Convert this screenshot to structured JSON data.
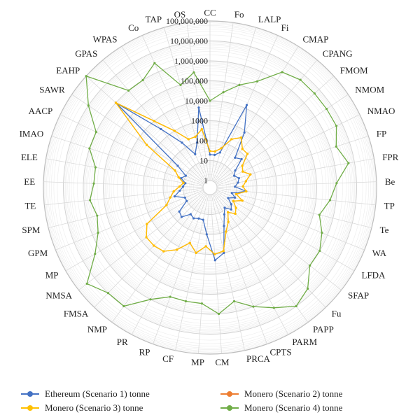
{
  "chart_data": {
    "type": "radar",
    "scale": "log",
    "grid": true,
    "legend_position": "bottom",
    "tick_labels": [
      "1",
      "10",
      "100",
      "1000",
      "10,000",
      "100,000",
      "1,000,000",
      "10,000,000",
      "100,000,000"
    ],
    "categories": [
      "CC",
      "Fo",
      "LALP",
      "Fi",
      "CMAP",
      "CPANG",
      "FMOM",
      "NMOM",
      "NMAO",
      "FP",
      "FPR",
      "Be",
      "TP",
      "Te",
      "WA",
      "LFDA",
      "SFAP",
      "Fu",
      "PAPP",
      "PARM",
      "CPTS",
      "PRCA",
      "CM",
      "MP",
      "CF",
      "RP",
      "PR",
      "NMP",
      "FMSA",
      "NMSA",
      "MP",
      "GPM",
      "SPM",
      "TE",
      "EE",
      "ELE",
      "IMAO",
      "AACP",
      "SAWR",
      "EAHP",
      "GPAS",
      "WPAS",
      "Co",
      "TAP",
      "OS"
    ],
    "series": [
      {
        "name": "Ethereum (Scenario 1) tonne",
        "color": "#4472C4",
        "values": [
          20,
          20,
          30,
          15000,
          800,
          40,
          60,
          15,
          10,
          15,
          12,
          8,
          30,
          6,
          10,
          5,
          10,
          15,
          8,
          15,
          50,
          1000,
          2000,
          100,
          20,
          20,
          25,
          20,
          50,
          40,
          10,
          10,
          30,
          15,
          10,
          8,
          15,
          10,
          40,
          1000000,
          3000,
          200,
          30,
          100,
          5000
        ]
      },
      {
        "name": "Monero (Scenario 2) tonne",
        "color": "#ED7D31",
        "values": [
          30,
          30,
          50,
          200,
          400,
          150,
          150,
          40,
          30,
          60,
          30,
          20,
          30,
          10,
          25,
          10,
          20,
          30,
          15,
          40,
          100,
          800,
          1000,
          400,
          1000,
          400,
          1500,
          4000,
          5000,
          5000,
          2000,
          100,
          50,
          30,
          15,
          10,
          20,
          40,
          3000,
          1000000,
          10000,
          1000,
          200,
          200,
          400
        ]
      },
      {
        "name": "Monero (Scenario 3) tonne",
        "color": "#FFC000",
        "values": [
          30,
          30,
          50,
          200,
          400,
          150,
          150,
          40,
          30,
          60,
          30,
          20,
          30,
          10,
          25,
          10,
          20,
          30,
          15,
          40,
          100,
          800,
          1000,
          400,
          1000,
          400,
          1500,
          4000,
          5000,
          5000,
          2000,
          100,
          50,
          30,
          15,
          10,
          20,
          40,
          3000,
          1000000,
          10000,
          1000,
          200,
          200,
          400
        ]
      },
      {
        "name": "Monero (Scenario 4) tonne",
        "color": "#70AD47",
        "values": [
          10000,
          30000,
          100000,
          300000,
          3000000,
          5000000,
          5000000,
          5000000,
          5000000,
          2000000,
          5000000,
          1000000,
          500000,
          200000,
          500000,
          1000000,
          1000000,
          5000000,
          10000000,
          3000000,
          1000000,
          300000,
          1000000,
          300000,
          300000,
          300000,
          1000000,
          10000000,
          10000000,
          30000000,
          2000000,
          500000,
          300000,
          500000,
          300000,
          300000,
          1000000,
          1000000,
          10000000,
          100000000,
          1000000,
          1000000,
          3000000,
          100000,
          300000
        ]
      }
    ]
  }
}
